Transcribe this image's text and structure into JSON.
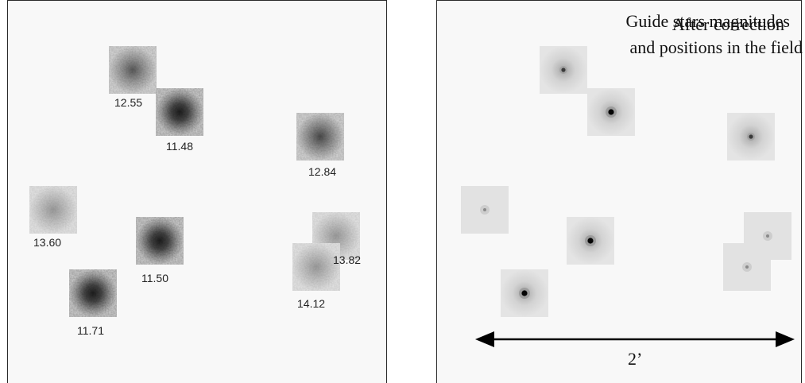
{
  "left_panel": {
    "title_line1": "Guide stars magnitudes",
    "title_line2": "and positions in the field",
    "stars": [
      {
        "id": "a",
        "magnitude": "12.55"
      },
      {
        "id": "b",
        "magnitude": "11.48"
      },
      {
        "id": "c",
        "magnitude": "12.84"
      },
      {
        "id": "d",
        "magnitude": "13.60"
      },
      {
        "id": "e",
        "magnitude": "11.50"
      },
      {
        "id": "f",
        "magnitude": "13.82"
      },
      {
        "id": "g",
        "magnitude": "14.12"
      },
      {
        "id": "h",
        "magnitude": "11.71"
      }
    ]
  },
  "right_panel": {
    "title": "After correction",
    "scale_label": "2’"
  },
  "colors": {
    "panel_background": "#f8f8f8",
    "border": "#2a2a2a",
    "text": "#111111"
  }
}
